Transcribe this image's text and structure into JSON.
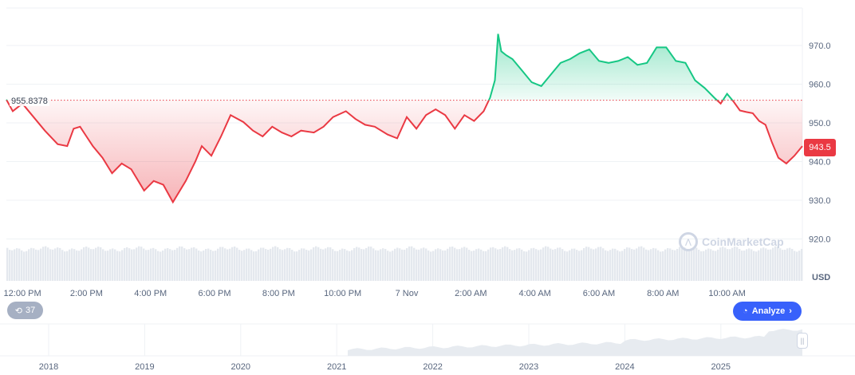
{
  "chart_data": {
    "type": "line",
    "ylabel": "USD",
    "ylim": [
      918,
      978
    ],
    "y_ticks": [
      "970.0",
      "960.0",
      "950.0",
      "940.0",
      "930.0",
      "920.0"
    ],
    "x_tick_labels": [
      "12:00 PM",
      "2:00 PM",
      "4:00 PM",
      "6:00 PM",
      "8:00 PM",
      "10:00 PM",
      "7 Nov",
      "2:00 AM",
      "4:00 AM",
      "6:00 AM",
      "8:00 AM",
      "10:00 AM"
    ],
    "x_tick_hours": [
      0.5,
      2.5,
      4.5,
      6.5,
      8.5,
      10.5,
      12.5,
      14.5,
      16.5,
      18.5,
      20.5,
      22.5
    ],
    "baseline_value": 955.8378,
    "baseline_label": "955.8378",
    "current_value": 943.5,
    "current_label": "943.5",
    "colors": {
      "up": "#16c784",
      "down": "#ea3943",
      "badge": "#ea3943",
      "accent": "#3861fb"
    },
    "series": [
      {
        "x": [
          0,
          0.2,
          0.5,
          0.8,
          1.2,
          1.6,
          1.9,
          2.1,
          2.3,
          2.5,
          2.7,
          3.0,
          3.3,
          3.6,
          3.9,
          4.3,
          4.6,
          4.9,
          5.2,
          5.6,
          5.9,
          6.1,
          6.4,
          6.7,
          7.0,
          7.4,
          7.7,
          8.0,
          8.3,
          8.6,
          8.9,
          9.2,
          9.6,
          9.9,
          10.2,
          10.6,
          10.9,
          11.2,
          11.5,
          11.9,
          12.2,
          12.5,
          12.8,
          13.1,
          13.4,
          13.7,
          14.0,
          14.3,
          14.6,
          14.9,
          15.1,
          15.25,
          15.35,
          15.45,
          15.6,
          15.8,
          16.1,
          16.4,
          16.7,
          17.0,
          17.3,
          17.6,
          17.9,
          18.2,
          18.5,
          18.8,
          19.1,
          19.4,
          19.7,
          20.0,
          20.3,
          20.6,
          20.9,
          21.2,
          21.5,
          21.8,
          22.1,
          22.3,
          22.5,
          22.7,
          22.9,
          23.1,
          23.3,
          23.5,
          23.7,
          23.9,
          24.1,
          24.35,
          24.6,
          24.85
        ],
        "values": [
          956,
          953,
          955,
          952,
          948,
          944.5,
          944,
          948.5,
          949,
          946.5,
          944,
          941,
          937,
          939.5,
          938,
          932.5,
          935,
          934,
          929.5,
          935,
          940,
          944,
          941.5,
          946.5,
          952,
          950.2,
          948,
          946.5,
          949,
          947.5,
          946.5,
          948,
          947.5,
          949,
          951.5,
          953,
          951,
          949.5,
          949,
          947,
          946,
          951.5,
          948.5,
          952,
          953.5,
          952,
          948.5,
          952,
          950.5,
          953,
          956.5,
          961,
          973,
          968.5,
          967.5,
          966.5,
          963.5,
          960.5,
          959.5,
          962.5,
          965.5,
          966.5,
          968,
          969,
          966,
          965.5,
          966,
          967,
          965,
          965.5,
          969.5,
          969.5,
          966,
          965.5,
          961,
          959,
          956.5,
          955,
          957.5,
          955.5,
          953.2,
          952.8,
          952.5,
          950.5,
          949.5,
          945,
          941,
          939.5,
          941.5,
          944
        ]
      }
    ]
  },
  "navigator": {
    "year_labels": [
      "2018",
      "2019",
      "2020",
      "2021",
      "2022",
      "2023",
      "2024",
      "2025"
    ]
  },
  "ui": {
    "usd_label": "USD",
    "history_count": "37",
    "analyze_label": "Analyze",
    "watermark_text": "CoinMarketCap"
  }
}
